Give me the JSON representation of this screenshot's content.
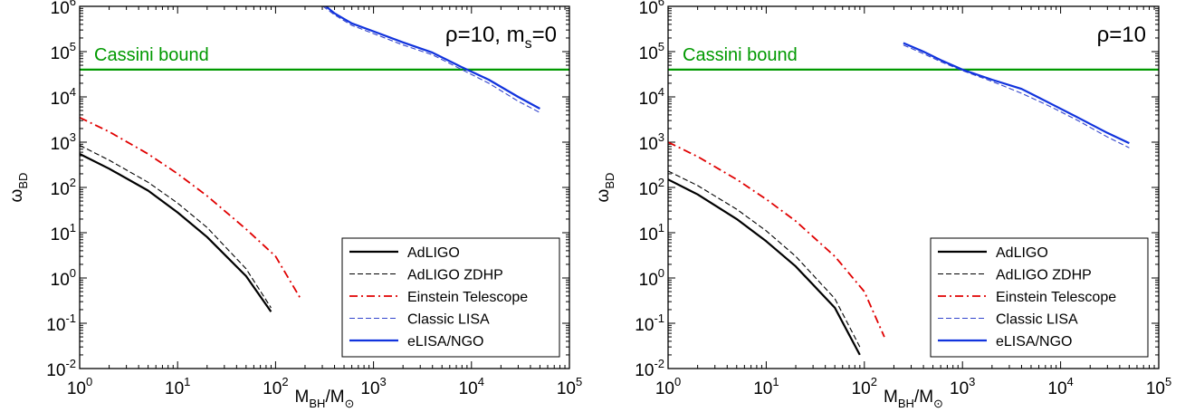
{
  "chart_data": [
    {
      "type": "line",
      "panel": "left",
      "xscale": "log",
      "yscale": "log",
      "xlim": [
        1,
        100000
      ],
      "ylim": [
        0.01,
        1000000
      ],
      "xlabel": {
        "main": "M",
        "sub": "BH",
        "tail": "/M",
        "tail_sub": "⊙"
      },
      "ylabel": {
        "main": "ω",
        "sub": "BD"
      },
      "xticks": [
        {
          "base": "10",
          "exp": "0"
        },
        {
          "base": "10",
          "exp": "1"
        },
        {
          "base": "10",
          "exp": "2"
        },
        {
          "base": "10",
          "exp": "3"
        },
        {
          "base": "10",
          "exp": "4"
        },
        {
          "base": "10",
          "exp": "5"
        }
      ],
      "yticks": [
        {
          "base": "10",
          "exp": "-2"
        },
        {
          "base": "10",
          "exp": "-1"
        },
        {
          "base": "10",
          "exp": "0"
        },
        {
          "base": "10",
          "exp": "1"
        },
        {
          "base": "10",
          "exp": "2"
        },
        {
          "base": "10",
          "exp": "3"
        },
        {
          "base": "10",
          "exp": "4"
        },
        {
          "base": "10",
          "exp": "5"
        },
        {
          "base": "10",
          "exp": "6"
        }
      ],
      "annotation": {
        "pre": "ρ=10, m",
        "sub": "s",
        "post": "=0"
      },
      "hline": {
        "y": 40000,
        "label": "Cassini bound",
        "color": "#009900"
      },
      "legend_position": "bottom-right",
      "series": [
        {
          "name": "AdLIGO",
          "color": "#000000",
          "style": "solid",
          "width": 2.2,
          "x": [
            1,
            2,
            5,
            10,
            20,
            50,
            90
          ],
          "y": [
            550,
            260,
            85,
            28,
            8,
            1.1,
            0.18
          ]
        },
        {
          "name": "AdLIGO ZDHP",
          "color": "#000000",
          "style": "dashed",
          "width": 1.1,
          "x": [
            1,
            2,
            5,
            10,
            20,
            50,
            90
          ],
          "y": [
            850,
            400,
            130,
            45,
            13,
            1.6,
            0.22
          ]
        },
        {
          "name": "Einstein Telescope",
          "color": "#e00000",
          "style": "dashdot",
          "width": 1.8,
          "x": [
            1,
            2,
            5,
            10,
            20,
            50,
            100,
            180
          ],
          "y": [
            3500,
            1700,
            550,
            200,
            65,
            12,
            3,
            0.35
          ]
        },
        {
          "name": "Classic LISA",
          "color": "#3344cc",
          "style": "dashed",
          "width": 1.1,
          "x": [
            260,
            400,
            600,
            1000,
            2000,
            4000,
            8000,
            15000,
            30000,
            50000
          ],
          "y": [
            1300000,
            650000,
            380000,
            250000,
            140000,
            85000,
            40000,
            20000,
            8000,
            4500
          ]
        },
        {
          "name": "eLISA/NGO",
          "color": "#1133dd",
          "style": "solid",
          "width": 2.2,
          "x": [
            260,
            400,
            600,
            1000,
            2000,
            4000,
            8000,
            15000,
            30000,
            50000
          ],
          "y": [
            1500000,
            700000,
            420000,
            280000,
            160000,
            95000,
            45000,
            24000,
            10000,
            5500
          ]
        }
      ]
    },
    {
      "type": "line",
      "panel": "right",
      "xscale": "log",
      "yscale": "log",
      "xlim": [
        1,
        100000
      ],
      "ylim": [
        0.01,
        1000000
      ],
      "xlabel": {
        "main": "M",
        "sub": "BH",
        "tail": "/M",
        "tail_sub": "⊙"
      },
      "ylabel": {
        "main": "ω",
        "sub": "BD"
      },
      "xticks": [
        {
          "base": "10",
          "exp": "0"
        },
        {
          "base": "10",
          "exp": "1"
        },
        {
          "base": "10",
          "exp": "2"
        },
        {
          "base": "10",
          "exp": "3"
        },
        {
          "base": "10",
          "exp": "4"
        },
        {
          "base": "10",
          "exp": "5"
        }
      ],
      "yticks": [
        {
          "base": "10",
          "exp": "-2"
        },
        {
          "base": "10",
          "exp": "-1"
        },
        {
          "base": "10",
          "exp": "0"
        },
        {
          "base": "10",
          "exp": "1"
        },
        {
          "base": "10",
          "exp": "2"
        },
        {
          "base": "10",
          "exp": "3"
        },
        {
          "base": "10",
          "exp": "4"
        },
        {
          "base": "10",
          "exp": "5"
        },
        {
          "base": "10",
          "exp": "6"
        }
      ],
      "annotation": {
        "pre": "ρ=10",
        "sub": "",
        "post": ""
      },
      "hline": {
        "y": 40000,
        "label": "Cassini bound",
        "color": "#009900"
      },
      "legend_position": "bottom-right",
      "series": [
        {
          "name": "AdLIGO",
          "color": "#000000",
          "style": "solid",
          "width": 2.2,
          "x": [
            1,
            2,
            5,
            10,
            20,
            50,
            90
          ],
          "y": [
            150,
            70,
            20,
            6.5,
            1.8,
            0.22,
            0.02
          ]
        },
        {
          "name": "AdLIGO ZDHP",
          "color": "#000000",
          "style": "dashed",
          "width": 1.1,
          "x": [
            1,
            2,
            5,
            10,
            20,
            50,
            90
          ],
          "y": [
            230,
            110,
            33,
            11,
            3,
            0.35,
            0.03
          ]
        },
        {
          "name": "Einstein Telescope",
          "color": "#e00000",
          "style": "dashdot",
          "width": 1.8,
          "x": [
            1,
            2,
            5,
            10,
            20,
            50,
            100,
            160
          ],
          "y": [
            1000,
            480,
            150,
            55,
            18,
            3,
            0.5,
            0.05
          ]
        },
        {
          "name": "Classic LISA",
          "color": "#3344cc",
          "style": "dashed",
          "width": 1.1,
          "x": [
            250,
            400,
            600,
            1000,
            2000,
            4000,
            8000,
            15000,
            30000,
            50000
          ],
          "y": [
            140000,
            90000,
            60000,
            38000,
            22000,
            12000,
            6000,
            3000,
            1300,
            750
          ]
        },
        {
          "name": "eLISA/NGO",
          "color": "#1133dd",
          "style": "solid",
          "width": 2.2,
          "x": [
            250,
            400,
            600,
            1000,
            2000,
            4000,
            8000,
            15000,
            30000,
            50000
          ],
          "y": [
            155000,
            100000,
            65000,
            40000,
            24000,
            15000,
            7000,
            3500,
            1600,
            950
          ]
        }
      ]
    }
  ]
}
